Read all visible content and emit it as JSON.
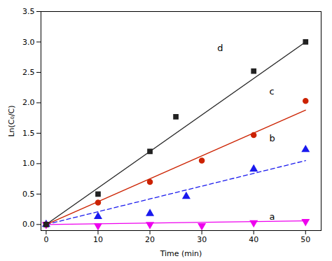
{
  "chart_data": {
    "type": "scatter",
    "xlabel": "Time (min)",
    "ylabel": "Ln(C₀/C)",
    "xlim": [
      -1,
      53
    ],
    "ylim": [
      -0.1,
      3.5
    ],
    "xticks": [
      0,
      10,
      20,
      30,
      40,
      50
    ],
    "yticks": [
      {
        "value": 0.0,
        "label": "0.0"
      },
      0.5,
      {
        "value": 1.0,
        "label": "1.0"
      },
      1.5,
      {
        "value": 2.0,
        "label": "2.0"
      },
      2.5,
      {
        "value": 3.0,
        "label": "3.0"
      },
      3.5
    ],
    "grid": false,
    "series": [
      {
        "color": "#ee00ee",
        "marker": "triangle-down",
        "line_style": "solid",
        "x": [
          0,
          10,
          20,
          30,
          40,
          50
        ],
        "values": [
          0.0,
          -0.02,
          0.0,
          -0.02,
          0.03,
          0.05
        ],
        "fit": {
          "x": [
            0,
            50
          ],
          "values": [
            0.0,
            0.06
          ]
        }
      },
      {
        "color": "#1a1aee",
        "marker": "triangle-up",
        "line_style": "dashed",
        "x": [
          0,
          10,
          20,
          27,
          40,
          50
        ],
        "values": [
          0.0,
          0.13,
          0.18,
          0.46,
          0.91,
          1.23
        ],
        "fit": {
          "x": [
            0,
            50
          ],
          "values": [
            0.0,
            1.05
          ]
        }
      },
      {
        "color": "#cc2200",
        "marker": "circle",
        "line_style": "solid",
        "x": [
          0,
          10,
          20,
          30,
          40,
          50
        ],
        "values": [
          0.0,
          0.36,
          0.7,
          1.05,
          1.47,
          2.03
        ],
        "fit": {
          "x": [
            0,
            50
          ],
          "values": [
            0.0,
            1.88
          ]
        }
      },
      {
        "color": "#222222",
        "marker": "square",
        "line_style": "solid",
        "x": [
          0,
          10,
          20,
          25,
          40,
          50
        ],
        "values": [
          0.0,
          0.5,
          1.2,
          1.77,
          2.52,
          3.0
        ],
        "fit": {
          "x": [
            0,
            50
          ],
          "values": [
            0.0,
            3.0
          ]
        }
      }
    ],
    "annotations": [
      {
        "text": "a",
        "x": 43,
        "y": 0.13
      },
      {
        "text": "b",
        "x": 43,
        "y": 1.42
      },
      {
        "text": "c",
        "x": 43,
        "y": 2.18
      },
      {
        "text": "d",
        "x": 33,
        "y": 2.9
      }
    ]
  }
}
